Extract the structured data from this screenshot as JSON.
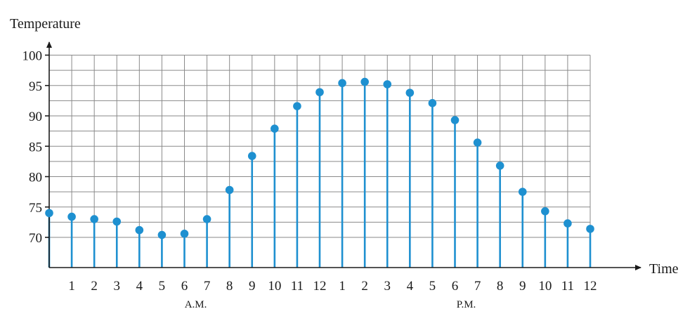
{
  "chart_data": {
    "type": "scatter",
    "style": "stem",
    "ylabel": "Temperature",
    "xlabel": "Time",
    "ylim": [
      65,
      100
    ],
    "y_ticks": [
      70,
      75,
      80,
      85,
      90,
      95,
      100
    ],
    "x_tick_labels": [
      "1",
      "2",
      "3",
      "4",
      "5",
      "6",
      "7",
      "8",
      "9",
      "10",
      "11",
      "12",
      "1",
      "2",
      "3",
      "4",
      "5",
      "6",
      "7",
      "8",
      "9",
      "10",
      "11",
      "12"
    ],
    "periods": [
      {
        "label": "A.M.",
        "from": 1,
        "to": 12
      },
      {
        "label": "P.M.",
        "from": 13,
        "to": 24
      }
    ],
    "grid": true,
    "colors": {
      "marker": "#1e90d0",
      "stem": "#1e90d0",
      "grid": "#8a8a8a",
      "axis": "#1a1a1a"
    },
    "series": [
      {
        "x": [
          0,
          1,
          2,
          3,
          4,
          5,
          6,
          7,
          8,
          9,
          10,
          11,
          12,
          13,
          14,
          15,
          16,
          17,
          18,
          19,
          20,
          21,
          22,
          23,
          24
        ],
        "values": [
          74.0,
          73.4,
          73.0,
          72.6,
          71.2,
          70.4,
          70.6,
          73.0,
          77.8,
          83.4,
          87.9,
          91.6,
          93.9,
          95.4,
          95.6,
          95.2,
          93.8,
          92.1,
          89.3,
          85.6,
          81.8,
          77.5,
          74.3,
          72.3,
          71.4
        ]
      }
    ]
  }
}
